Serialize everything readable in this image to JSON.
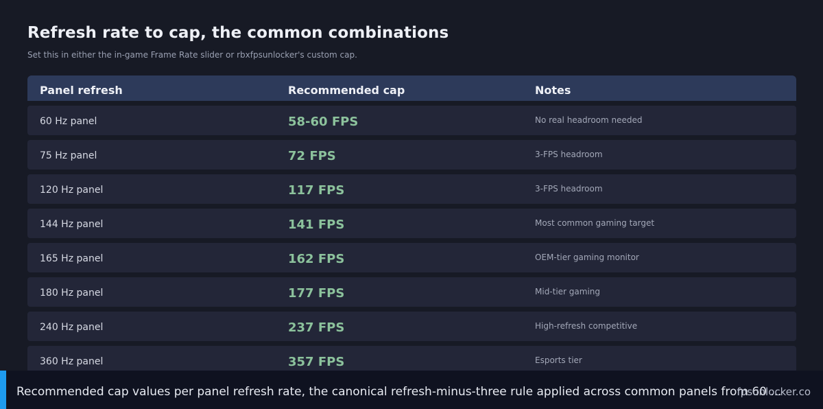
{
  "title": "Refresh rate to cap, the common combinations",
  "subtitle": "Set this in either the in-game Frame Rate slider or rbxfpsunlocker's custom cap.",
  "table": {
    "headers": [
      "Panel refresh",
      "Recommended cap",
      "Notes"
    ],
    "rows": [
      {
        "panel": "60 Hz panel",
        "cap": "58-60 FPS",
        "note": "No real headroom needed"
      },
      {
        "panel": "75 Hz panel",
        "cap": "72 FPS",
        "note": "3-FPS headroom"
      },
      {
        "panel": "120 Hz panel",
        "cap": "117 FPS",
        "note": "3-FPS headroom"
      },
      {
        "panel": "144 Hz panel",
        "cap": "141 FPS",
        "note": "Most common gaming target"
      },
      {
        "panel": "165 Hz panel",
        "cap": "162 FPS",
        "note": "OEM-tier gaming monitor"
      },
      {
        "panel": "180 Hz panel",
        "cap": "177 FPS",
        "note": "Mid-tier gaming"
      },
      {
        "panel": "240 Hz panel",
        "cap": "237 FPS",
        "note": "High-refresh competitive"
      },
      {
        "panel": "360 Hz panel",
        "cap": "357 FPS",
        "note": "Esports tier"
      }
    ]
  },
  "caption": {
    "text": "Recommended cap values per panel refresh rate, the canonical refresh-minus-three rule applied across common panels from 60 ...",
    "source": "fpsunlocker.co"
  },
  "colors": {
    "background": "#171a25",
    "header": "#2d3a5a",
    "row": "#232638",
    "cap_text": "#8cc29c",
    "accent": "#1e9bf0"
  }
}
